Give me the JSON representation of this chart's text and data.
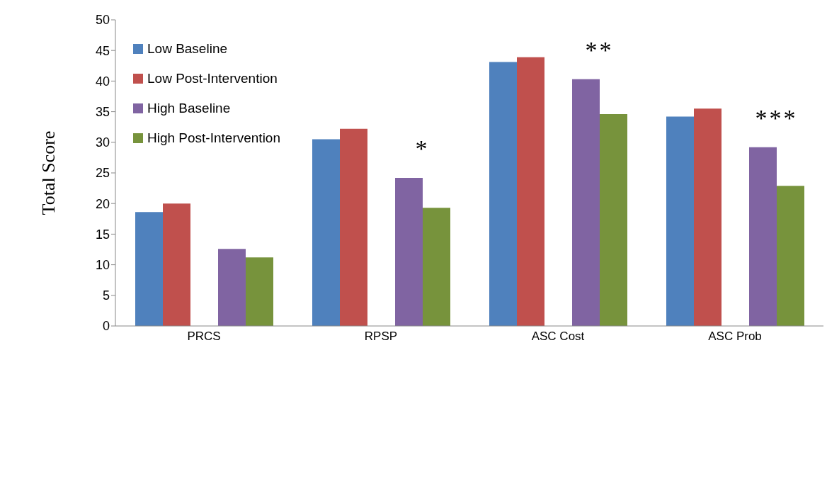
{
  "chart_data": {
    "type": "bar",
    "ylabel": "Total Score",
    "categories": [
      "PRCS",
      "RPSP",
      "ASC Cost",
      "ASC Prob"
    ],
    "series": [
      {
        "name": "Low Baseline",
        "color": "#4f81bd",
        "values": [
          18.6,
          30.5,
          43.1,
          34.2
        ]
      },
      {
        "name": "Low Post-Intervention",
        "color": "#c0504d",
        "values": [
          20.0,
          32.2,
          43.9,
          35.5
        ]
      },
      {
        "name": "High Baseline",
        "color": "#8064a2",
        "values": [
          12.6,
          24.2,
          40.3,
          29.2
        ]
      },
      {
        "name": "High Post-Intervention",
        "color": "#77933c",
        "values": [
          11.2,
          19.3,
          34.6,
          22.9
        ]
      }
    ],
    "ylim": [
      0,
      50
    ],
    "yticks": [
      0,
      5,
      10,
      15,
      20,
      25,
      30,
      35,
      40,
      45,
      50
    ],
    "grid": false,
    "legend": "top left",
    "annotations": [
      "*",
      "**",
      "***"
    ]
  }
}
